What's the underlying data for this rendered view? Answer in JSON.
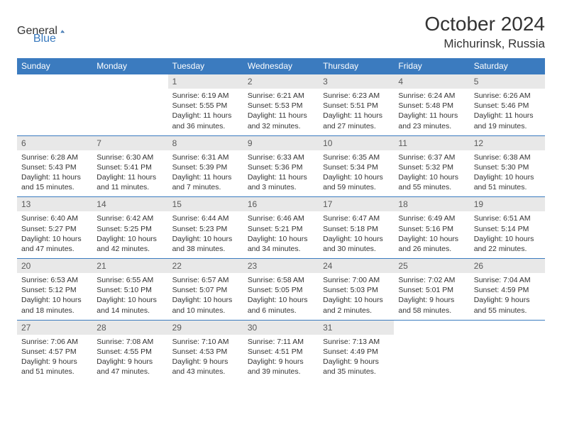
{
  "logo": {
    "part1": "General",
    "part2": "Blue"
  },
  "title": "October 2024",
  "location": "Michurinsk, Russia",
  "header_bg": "#3b7bbf",
  "daynum_bg": "#e8e8e8",
  "weekdays": [
    "Sunday",
    "Monday",
    "Tuesday",
    "Wednesday",
    "Thursday",
    "Friday",
    "Saturday"
  ],
  "weeks": [
    {
      "nums": [
        "",
        "",
        "1",
        "2",
        "3",
        "4",
        "5"
      ],
      "cells": [
        null,
        null,
        {
          "sunrise": "6:19 AM",
          "sunset": "5:55 PM",
          "daylight": "11 hours and 36 minutes."
        },
        {
          "sunrise": "6:21 AM",
          "sunset": "5:53 PM",
          "daylight": "11 hours and 32 minutes."
        },
        {
          "sunrise": "6:23 AM",
          "sunset": "5:51 PM",
          "daylight": "11 hours and 27 minutes."
        },
        {
          "sunrise": "6:24 AM",
          "sunset": "5:48 PM",
          "daylight": "11 hours and 23 minutes."
        },
        {
          "sunrise": "6:26 AM",
          "sunset": "5:46 PM",
          "daylight": "11 hours and 19 minutes."
        }
      ]
    },
    {
      "nums": [
        "6",
        "7",
        "8",
        "9",
        "10",
        "11",
        "12"
      ],
      "cells": [
        {
          "sunrise": "6:28 AM",
          "sunset": "5:43 PM",
          "daylight": "11 hours and 15 minutes."
        },
        {
          "sunrise": "6:30 AM",
          "sunset": "5:41 PM",
          "daylight": "11 hours and 11 minutes."
        },
        {
          "sunrise": "6:31 AM",
          "sunset": "5:39 PM",
          "daylight": "11 hours and 7 minutes."
        },
        {
          "sunrise": "6:33 AM",
          "sunset": "5:36 PM",
          "daylight": "11 hours and 3 minutes."
        },
        {
          "sunrise": "6:35 AM",
          "sunset": "5:34 PM",
          "daylight": "10 hours and 59 minutes."
        },
        {
          "sunrise": "6:37 AM",
          "sunset": "5:32 PM",
          "daylight": "10 hours and 55 minutes."
        },
        {
          "sunrise": "6:38 AM",
          "sunset": "5:30 PM",
          "daylight": "10 hours and 51 minutes."
        }
      ]
    },
    {
      "nums": [
        "13",
        "14",
        "15",
        "16",
        "17",
        "18",
        "19"
      ],
      "cells": [
        {
          "sunrise": "6:40 AM",
          "sunset": "5:27 PM",
          "daylight": "10 hours and 47 minutes."
        },
        {
          "sunrise": "6:42 AM",
          "sunset": "5:25 PM",
          "daylight": "10 hours and 42 minutes."
        },
        {
          "sunrise": "6:44 AM",
          "sunset": "5:23 PM",
          "daylight": "10 hours and 38 minutes."
        },
        {
          "sunrise": "6:46 AM",
          "sunset": "5:21 PM",
          "daylight": "10 hours and 34 minutes."
        },
        {
          "sunrise": "6:47 AM",
          "sunset": "5:18 PM",
          "daylight": "10 hours and 30 minutes."
        },
        {
          "sunrise": "6:49 AM",
          "sunset": "5:16 PM",
          "daylight": "10 hours and 26 minutes."
        },
        {
          "sunrise": "6:51 AM",
          "sunset": "5:14 PM",
          "daylight": "10 hours and 22 minutes."
        }
      ]
    },
    {
      "nums": [
        "20",
        "21",
        "22",
        "23",
        "24",
        "25",
        "26"
      ],
      "cells": [
        {
          "sunrise": "6:53 AM",
          "sunset": "5:12 PM",
          "daylight": "10 hours and 18 minutes."
        },
        {
          "sunrise": "6:55 AM",
          "sunset": "5:10 PM",
          "daylight": "10 hours and 14 minutes."
        },
        {
          "sunrise": "6:57 AM",
          "sunset": "5:07 PM",
          "daylight": "10 hours and 10 minutes."
        },
        {
          "sunrise": "6:58 AM",
          "sunset": "5:05 PM",
          "daylight": "10 hours and 6 minutes."
        },
        {
          "sunrise": "7:00 AM",
          "sunset": "5:03 PM",
          "daylight": "10 hours and 2 minutes."
        },
        {
          "sunrise": "7:02 AM",
          "sunset": "5:01 PM",
          "daylight": "9 hours and 58 minutes."
        },
        {
          "sunrise": "7:04 AM",
          "sunset": "4:59 PM",
          "daylight": "9 hours and 55 minutes."
        }
      ]
    },
    {
      "nums": [
        "27",
        "28",
        "29",
        "30",
        "31",
        "",
        ""
      ],
      "cells": [
        {
          "sunrise": "7:06 AM",
          "sunset": "4:57 PM",
          "daylight": "9 hours and 51 minutes."
        },
        {
          "sunrise": "7:08 AM",
          "sunset": "4:55 PM",
          "daylight": "9 hours and 47 minutes."
        },
        {
          "sunrise": "7:10 AM",
          "sunset": "4:53 PM",
          "daylight": "9 hours and 43 minutes."
        },
        {
          "sunrise": "7:11 AM",
          "sunset": "4:51 PM",
          "daylight": "9 hours and 39 minutes."
        },
        {
          "sunrise": "7:13 AM",
          "sunset": "4:49 PM",
          "daylight": "9 hours and 35 minutes."
        },
        null,
        null
      ]
    }
  ],
  "labels": {
    "sunrise": "Sunrise: ",
    "sunset": "Sunset: ",
    "daylight": "Daylight: "
  }
}
